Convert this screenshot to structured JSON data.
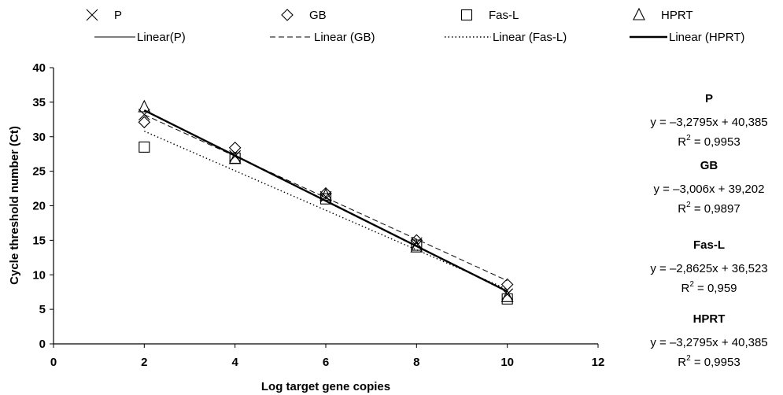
{
  "chart_data": {
    "type": "scatter",
    "xlabel": "Log target gene copies",
    "ylabel": "Cycle threshold number (Ct)",
    "xlim": [
      0,
      12
    ],
    "ylim": [
      0,
      40
    ],
    "x_ticks": [
      "0",
      "2",
      "4",
      "6",
      "8",
      "10",
      "12"
    ],
    "y_ticks": [
      "0",
      "5",
      "10",
      "15",
      "20",
      "25",
      "30",
      "35",
      "40"
    ],
    "grid": false,
    "legend_position": "top",
    "series": [
      {
        "name": "P",
        "marker": "x",
        "x": [
          2,
          4,
          6,
          8,
          10
        ],
        "y": [
          33.2,
          27.2,
          21.3,
          14.6,
          7.2
        ],
        "trend_name": "Linear(P)",
        "trend_style": "solid-thin",
        "slope": -3.2795,
        "intercept": 40.385,
        "equation": "y = –3,2795x + 40,385",
        "r2_label": "R",
        "r2_sup": "2",
        "r2_value": " = 0,9953"
      },
      {
        "name": "GB",
        "marker": "diamond",
        "x": [
          2,
          4,
          6,
          8,
          10
        ],
        "y": [
          32.1,
          28.4,
          21.8,
          15.0,
          8.6
        ],
        "trend_name": "Linear (GB)",
        "trend_style": "dashed",
        "slope": -3.006,
        "intercept": 39.202,
        "equation": "y = –3,006x + 39,202",
        "r2_label": "R",
        "r2_sup": "2",
        "r2_value": " = 0,9897"
      },
      {
        "name": "Fas-L",
        "marker": "square",
        "x": [
          2,
          4,
          6,
          8,
          10
        ],
        "y": [
          28.5,
          26.9,
          21.0,
          14.3,
          6.5
        ],
        "trend_name": "Linear (Fas-L)",
        "trend_style": "dotted",
        "slope": -2.8625,
        "intercept": 36.523,
        "equation": "y = –2,8625x + 36,523",
        "r2_label": "R",
        "r2_sup": "2",
        "r2_value": " = 0,959"
      },
      {
        "name": "HPRT",
        "marker": "triangle",
        "x": [
          2,
          4,
          6,
          8,
          10
        ],
        "y": [
          34.3,
          26.8,
          21.5,
          14.0,
          6.8
        ],
        "trend_name": "Linear (HPRT)",
        "trend_style": "solid-thick",
        "slope": -3.2795,
        "intercept": 40.385,
        "equation": "y = –3,2795x + 40,385",
        "r2_label": "R",
        "r2_sup": "2",
        "r2_value": " = 0,9953"
      }
    ]
  }
}
